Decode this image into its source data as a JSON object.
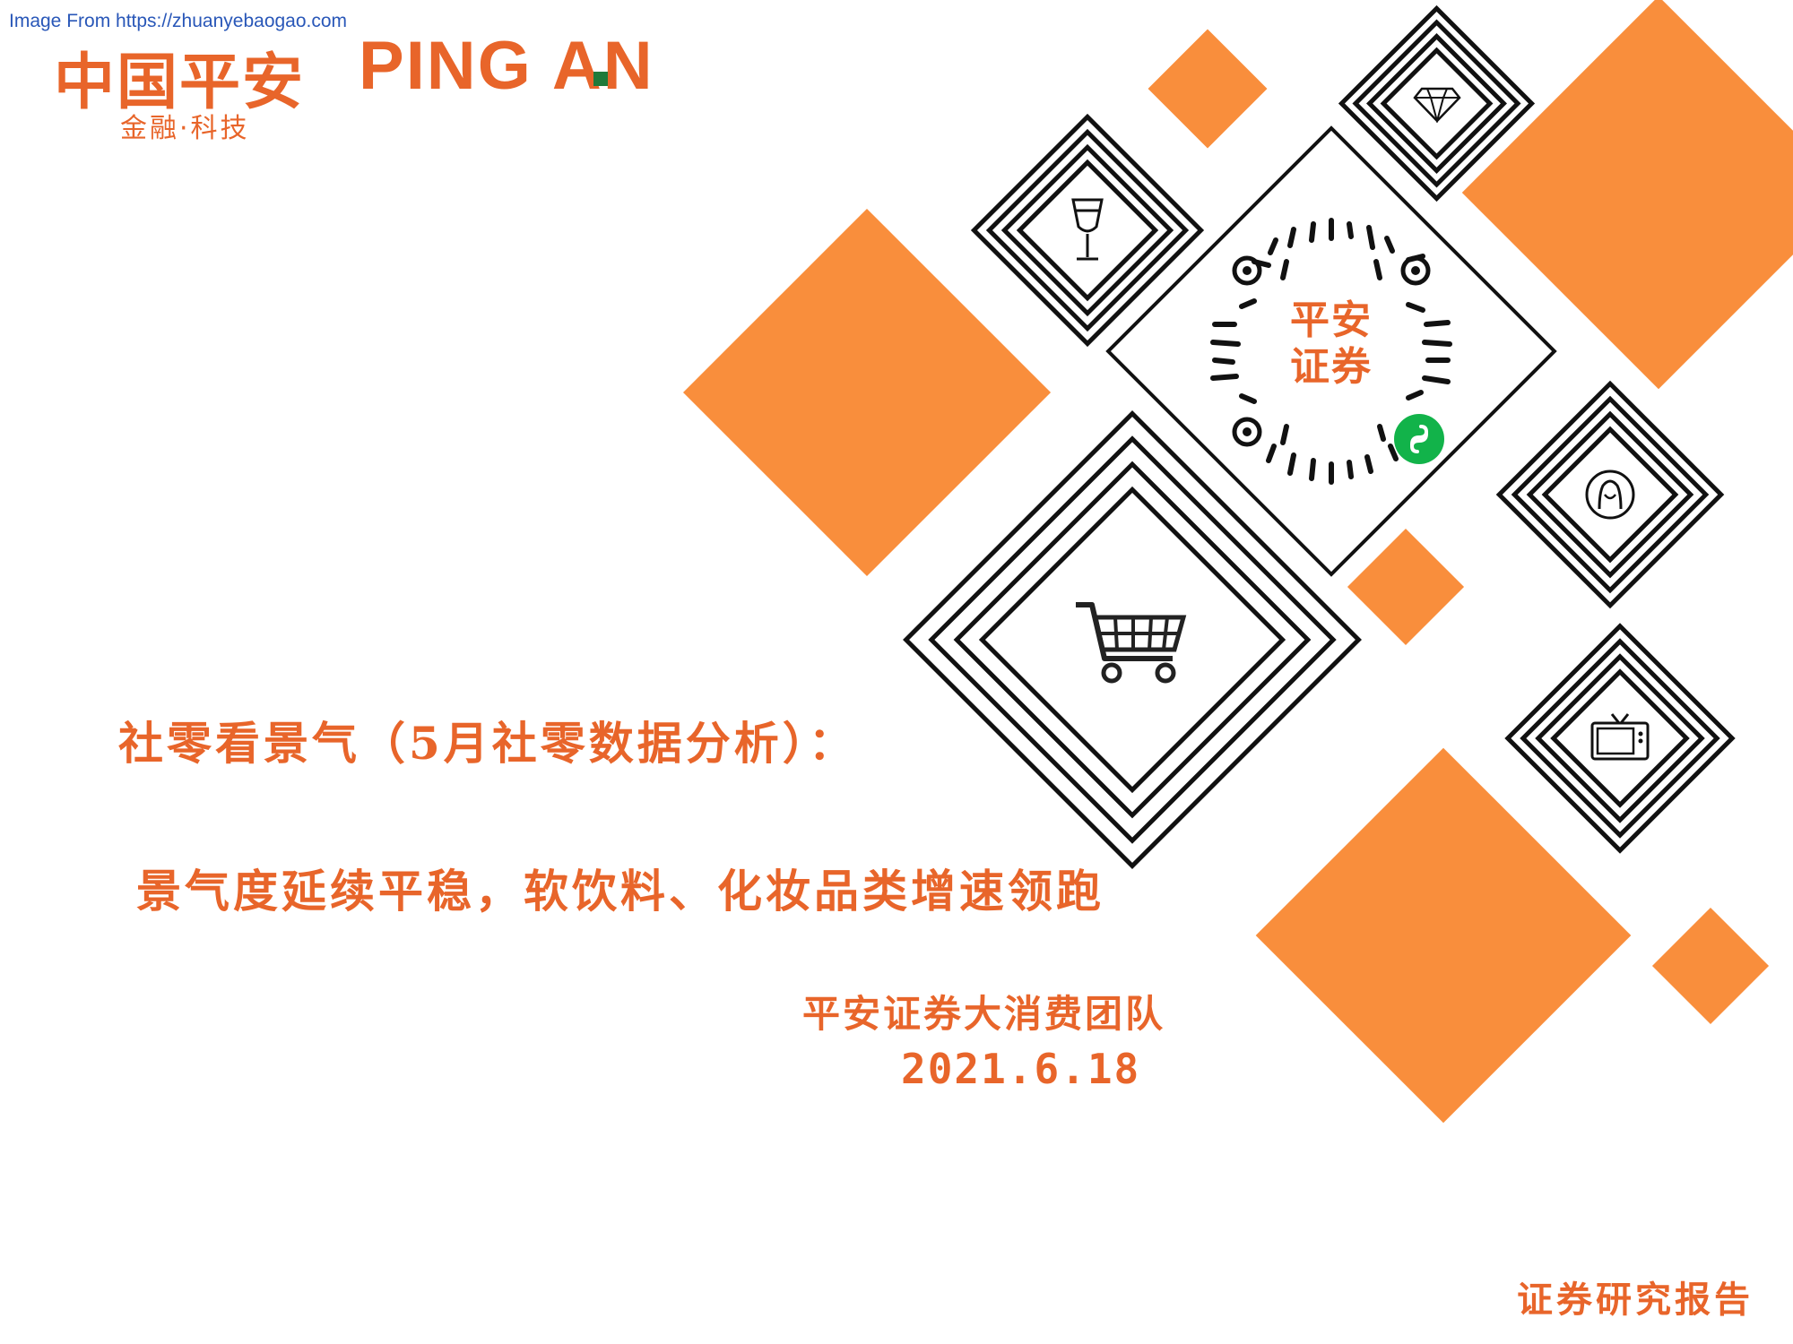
{
  "watermark": "Image From https://zhuanyebaogao.com",
  "brand": {
    "name_cn": "中国平安",
    "name_en_left": "PING",
    "name_en_right": "AN",
    "tagline": "金融·科技"
  },
  "qr": {
    "line1": "平安",
    "line2": "证券"
  },
  "cover": {
    "title_line1": "社零看景气（5月社零数据分析）：",
    "title_line2": "景气度延续平稳，软饮料、化妆品类增速领跑",
    "team": "平安证券大消费团队",
    "date": "2021.6.18",
    "report_type": "证券研究报告"
  },
  "colors": {
    "accent": "#F98E3C",
    "text_orange": "#E8652A",
    "line_dark": "#111111",
    "watermark": "#2957b8"
  },
  "icons": [
    "wine-glass-icon",
    "diamond-icon",
    "shopping-cart-icon",
    "person-icon",
    "tv-icon",
    "mini-program-icon"
  ]
}
